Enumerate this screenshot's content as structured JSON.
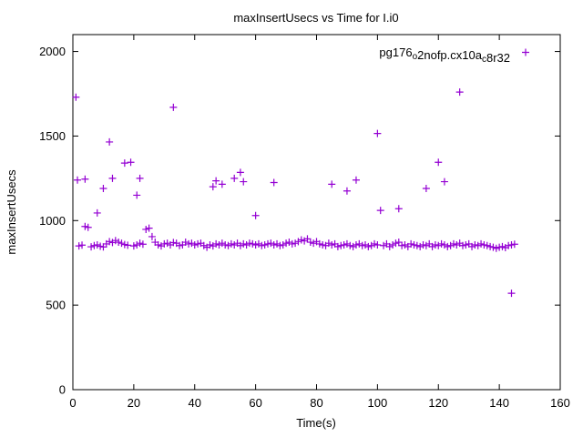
{
  "chart_data": {
    "type": "scatter",
    "title": "maxInsertUsecs vs Time for I.i0",
    "xlabel": "Time(s)",
    "ylabel": "maxInsertUsecs",
    "xlim": [
      0,
      160
    ],
    "ylim": [
      0,
      2100
    ],
    "xticks": [
      0,
      20,
      40,
      60,
      80,
      100,
      120,
      140,
      160
    ],
    "yticks": [
      0,
      500,
      1000,
      1500,
      2000
    ],
    "grid": "off",
    "legend": {
      "label": "pg176o2nofp.cx10ac8r32",
      "parts": [
        {
          "text": "pg176",
          "sub": false
        },
        {
          "text": "o",
          "sub": true
        },
        {
          "text": "2nofp.cx10a",
          "sub": false
        },
        {
          "text": "c",
          "sub": true
        },
        {
          "text": "8r32",
          "sub": false
        }
      ],
      "position": "top-right"
    },
    "series_color": "#9400D3",
    "marker": "plus",
    "points": [
      [
        1,
        1730
      ],
      [
        1.5,
        1240
      ],
      [
        4,
        1245
      ],
      [
        8,
        1045
      ],
      [
        10,
        1190
      ],
      [
        12,
        1465
      ],
      [
        13,
        1250
      ],
      [
        17,
        1340
      ],
      [
        19,
        1345
      ],
      [
        21,
        1150
      ],
      [
        22,
        1250
      ],
      [
        33,
        1670
      ],
      [
        46,
        1200
      ],
      [
        47,
        1235
      ],
      [
        49,
        1215
      ],
      [
        53,
        1250
      ],
      [
        55,
        1285
      ],
      [
        56,
        1230
      ],
      [
        60,
        1030
      ],
      [
        66,
        1225
      ],
      [
        85,
        1215
      ],
      [
        90,
        1175
      ],
      [
        93,
        1240
      ],
      [
        100,
        1515
      ],
      [
        101,
        1060
      ],
      [
        107,
        1070
      ],
      [
        116,
        1190
      ],
      [
        120,
        1345
      ],
      [
        122,
        1230
      ],
      [
        127,
        1760
      ],
      [
        144,
        570
      ],
      [
        2,
        850
      ],
      [
        3,
        855
      ],
      [
        4,
        965
      ],
      [
        5,
        960
      ],
      [
        6,
        845
      ],
      [
        7,
        852
      ],
      [
        8,
        856
      ],
      [
        9,
        848
      ],
      [
        10,
        844
      ],
      [
        11,
        862
      ],
      [
        12,
        876
      ],
      [
        13,
        870
      ],
      [
        14,
        882
      ],
      [
        15,
        872
      ],
      [
        16,
        866
      ],
      [
        17,
        858
      ],
      [
        18,
        854
      ],
      [
        20,
        850
      ],
      [
        21,
        856
      ],
      [
        22,
        866
      ],
      [
        23,
        860
      ],
      [
        24,
        948
      ],
      [
        25,
        955
      ],
      [
        26,
        905
      ],
      [
        27,
        872
      ],
      [
        28,
        856
      ],
      [
        29,
        850
      ],
      [
        30,
        862
      ],
      [
        31,
        866
      ],
      [
        32,
        856
      ],
      [
        33,
        870
      ],
      [
        34,
        866
      ],
      [
        35,
        852
      ],
      [
        36,
        856
      ],
      [
        37,
        872
      ],
      [
        38,
        862
      ],
      [
        39,
        866
      ],
      [
        40,
        856
      ],
      [
        41,
        862
      ],
      [
        42,
        866
      ],
      [
        43,
        852
      ],
      [
        44,
        842
      ],
      [
        45,
        856
      ],
      [
        46,
        850
      ],
      [
        47,
        862
      ],
      [
        48,
        856
      ],
      [
        49,
        866
      ],
      [
        50,
        856
      ],
      [
        51,
        852
      ],
      [
        52,
        862
      ],
      [
        53,
        856
      ],
      [
        54,
        866
      ],
      [
        55,
        852
      ],
      [
        56,
        862
      ],
      [
        57,
        856
      ],
      [
        58,
        866
      ],
      [
        59,
        862
      ],
      [
        60,
        856
      ],
      [
        61,
        862
      ],
      [
        62,
        852
      ],
      [
        63,
        856
      ],
      [
        64,
        862
      ],
      [
        65,
        866
      ],
      [
        66,
        856
      ],
      [
        67,
        862
      ],
      [
        68,
        852
      ],
      [
        69,
        856
      ],
      [
        70,
        866
      ],
      [
        71,
        872
      ],
      [
        72,
        862
      ],
      [
        73,
        866
      ],
      [
        74,
        876
      ],
      [
        75,
        886
      ],
      [
        76,
        880
      ],
      [
        77,
        892
      ],
      [
        78,
        872
      ],
      [
        79,
        866
      ],
      [
        80,
        876
      ],
      [
        81,
        862
      ],
      [
        82,
        856
      ],
      [
        83,
        852
      ],
      [
        84,
        866
      ],
      [
        85,
        856
      ],
      [
        86,
        862
      ],
      [
        87,
        846
      ],
      [
        88,
        852
      ],
      [
        89,
        856
      ],
      [
        90,
        862
      ],
      [
        91,
        852
      ],
      [
        92,
        846
      ],
      [
        93,
        856
      ],
      [
        94,
        862
      ],
      [
        95,
        852
      ],
      [
        96,
        856
      ],
      [
        97,
        846
      ],
      [
        98,
        852
      ],
      [
        99,
        862
      ],
      [
        100,
        856
      ],
      [
        102,
        852
      ],
      [
        103,
        862
      ],
      [
        104,
        846
      ],
      [
        105,
        856
      ],
      [
        106,
        866
      ],
      [
        107,
        872
      ],
      [
        108,
        852
      ],
      [
        109,
        856
      ],
      [
        110,
        846
      ],
      [
        111,
        862
      ],
      [
        112,
        856
      ],
      [
        113,
        852
      ],
      [
        114,
        846
      ],
      [
        115,
        856
      ],
      [
        116,
        852
      ],
      [
        117,
        862
      ],
      [
        118,
        846
      ],
      [
        119,
        856
      ],
      [
        120,
        852
      ],
      [
        121,
        862
      ],
      [
        122,
        856
      ],
      [
        123,
        846
      ],
      [
        124,
        852
      ],
      [
        125,
        862
      ],
      [
        126,
        856
      ],
      [
        127,
        866
      ],
      [
        128,
        852
      ],
      [
        129,
        856
      ],
      [
        130,
        862
      ],
      [
        131,
        846
      ],
      [
        132,
        856
      ],
      [
        133,
        852
      ],
      [
        134,
        862
      ],
      [
        135,
        856
      ],
      [
        136,
        852
      ],
      [
        137,
        846
      ],
      [
        138,
        842
      ],
      [
        139,
        836
      ],
      [
        140,
        842
      ],
      [
        141,
        846
      ],
      [
        142,
        840
      ],
      [
        143,
        852
      ],
      [
        144,
        856
      ],
      [
        145,
        860
      ]
    ]
  }
}
